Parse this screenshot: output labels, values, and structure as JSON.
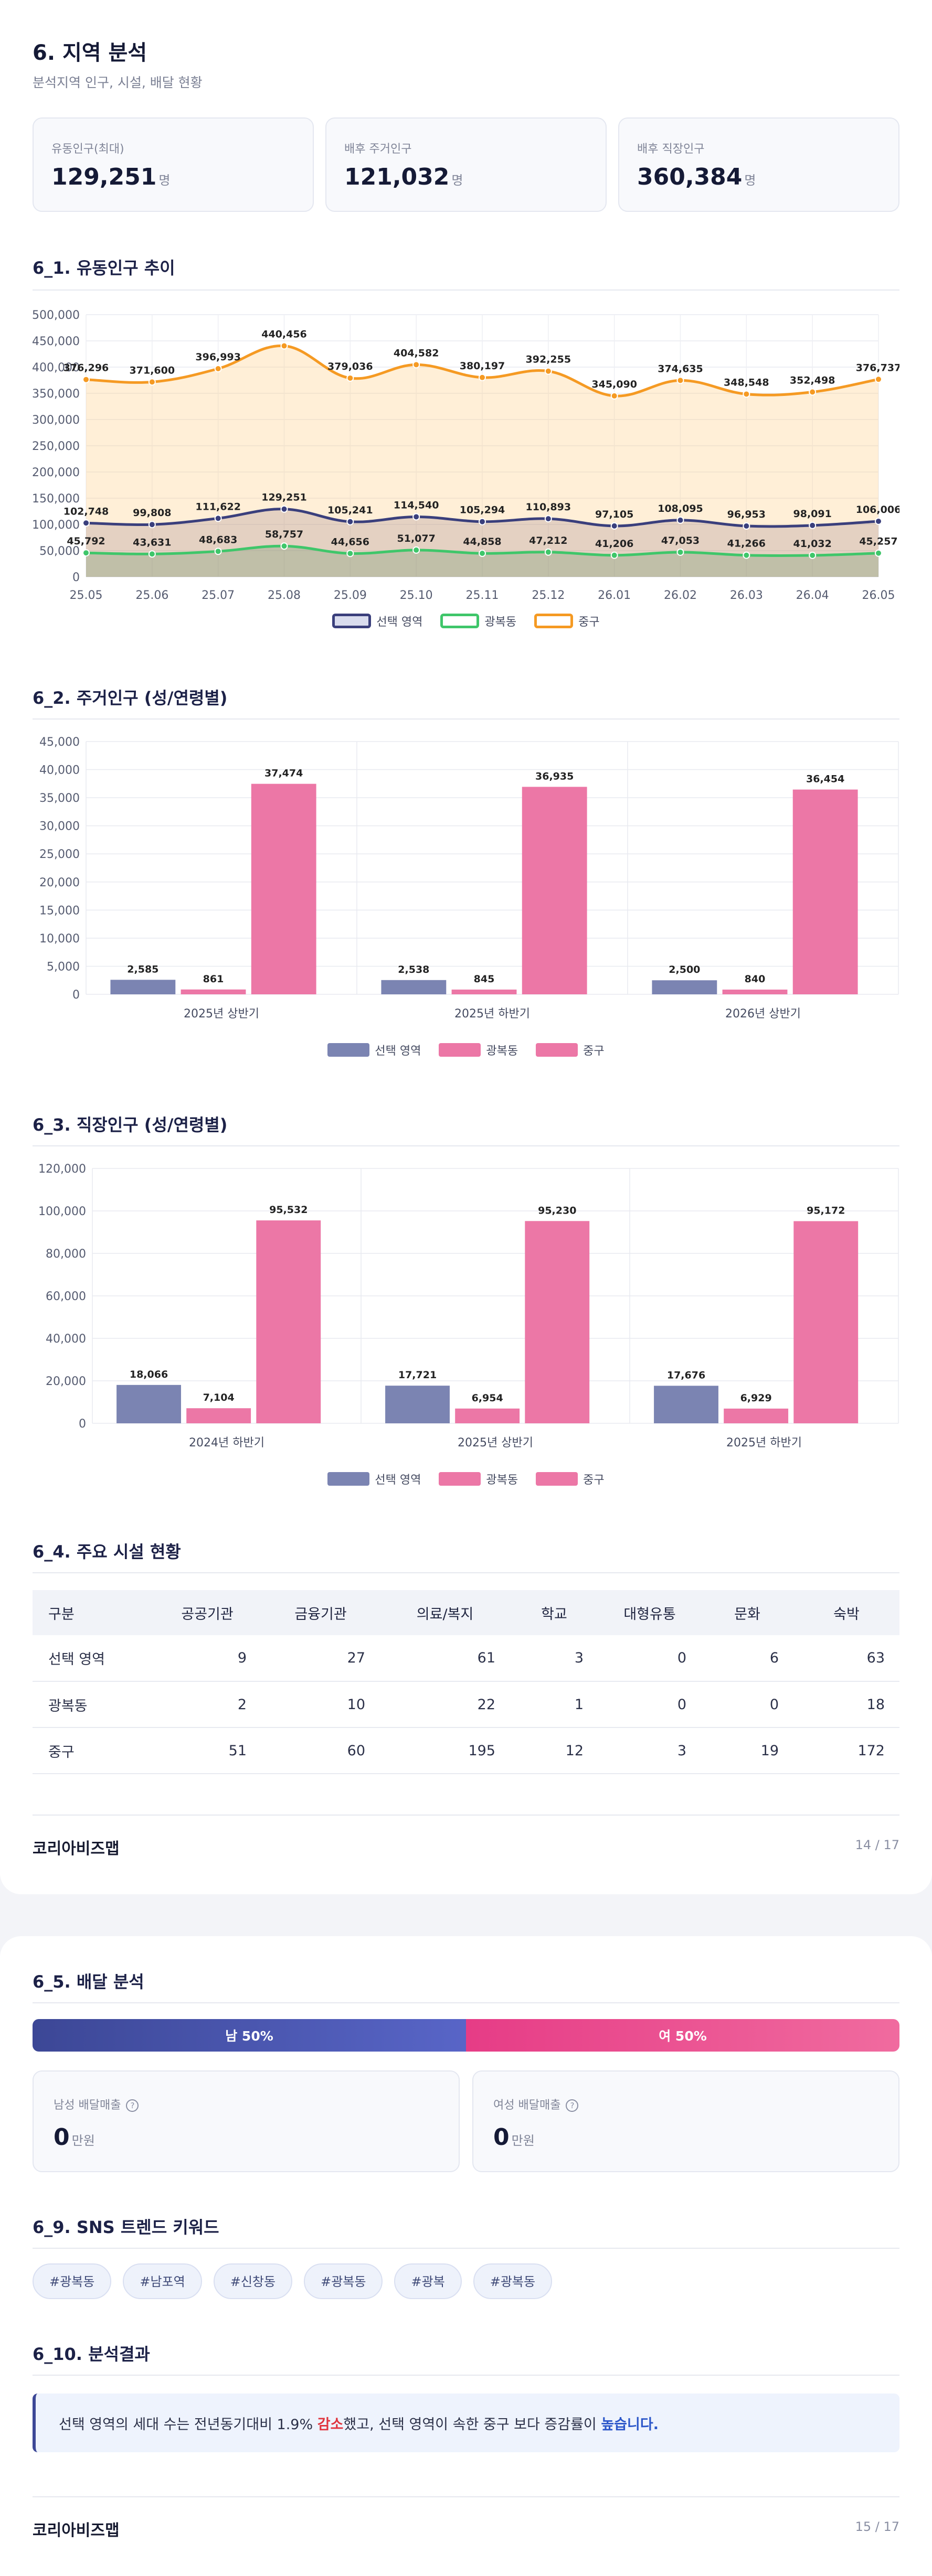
{
  "page1": {
    "title": "6. 지역 분석",
    "subtitle": "분석지역 인구, 시설, 배달 현황",
    "cards": [
      {
        "label": "유동인구(최대)",
        "value": "129,251",
        "unit": "명"
      },
      {
        "label": "배후 주거인구",
        "value": "121,032",
        "unit": "명"
      },
      {
        "label": "배후 직장인구",
        "value": "360,384",
        "unit": "명"
      }
    ],
    "sec1_title": "6_1. 유동인구 추이",
    "sec2_title": "6_2. 주거인구 (성/연령별)",
    "sec3_title": "6_3. 직장인구 (성/연령별)",
    "sec4_title": "6_4. 주요 시설 현황",
    "footer_brand": "코리아비즈맵",
    "footer_page": "14 / 17"
  },
  "legend": {
    "selected": "선택 영역",
    "dong": "광복동",
    "gu": "중구"
  },
  "colors": {
    "selected_line": "#3a3f7c",
    "dong_line": "#3fc66a",
    "gu_line": "#f59a23",
    "selected_bar": "#7b84b2",
    "dong_bar": "#ec77a6",
    "gu_bar": "#ec77a6"
  },
  "chart_data": [
    {
      "type": "line",
      "categories": [
        "25.05",
        "25.06",
        "25.07",
        "25.08",
        "25.09",
        "25.10",
        "25.11",
        "25.12",
        "26.01",
        "26.02",
        "26.03",
        "26.04",
        "26.05"
      ],
      "ylim": [
        0,
        500000
      ],
      "yticks": [
        "500,000",
        "450,000",
        "400,000",
        "350,000",
        "300,000",
        "250,000",
        "200,000",
        "150,000",
        "100,000",
        "50,000",
        "0"
      ],
      "series": [
        {
          "name": "선택 영역",
          "values": [
            102748,
            99808,
            111622,
            129251,
            105241,
            114540,
            105294,
            110893,
            97105,
            108095,
            96953,
            98091,
            106006
          ],
          "labels": [
            "102,748",
            "99,808",
            "111,622",
            "129,251",
            "105,241",
            "114,540",
            "105,294",
            "110,893",
            "97,105",
            "108,095",
            "96,953",
            "98,091",
            "106,006"
          ]
        },
        {
          "name": "광복동",
          "values": [
            45792,
            43631,
            48683,
            58757,
            44656,
            51077,
            44858,
            47212,
            41206,
            47053,
            41266,
            41032,
            45257
          ],
          "labels": [
            "45,792",
            "43,631",
            "48,683",
            "58,757",
            "44,656",
            "51,077",
            "44,858",
            "47,212",
            "41,206",
            "47,053",
            "41,266",
            "41,032",
            "45,257"
          ]
        },
        {
          "name": "중구",
          "values": [
            376296,
            371600,
            396993,
            440456,
            379036,
            404582,
            380197,
            392255,
            345090,
            374635,
            348548,
            352498,
            376737
          ],
          "labels": [
            "376,296",
            "371,600",
            "396,993",
            "440,456",
            "379,036",
            "404,582",
            "380,197",
            "392,255",
            "345,090",
            "374,635",
            "348,548",
            "352,498",
            "376,737"
          ]
        }
      ]
    },
    {
      "type": "bar",
      "categories": [
        "2025년 상반기",
        "2025년 하반기",
        "2026년 상반기"
      ],
      "ylim": [
        0,
        45000
      ],
      "yticks": [
        "45,000",
        "40,000",
        "35,000",
        "30,000",
        "25,000",
        "20,000",
        "15,000",
        "10,000",
        "5,000",
        "0"
      ],
      "series": [
        {
          "name": "선택 영역",
          "values": [
            2585,
            2538,
            2500
          ],
          "labels": [
            "2,585",
            "2,538",
            "2,500"
          ]
        },
        {
          "name": "광복동",
          "values": [
            861,
            845,
            840
          ],
          "labels": [
            "861",
            "845",
            "840"
          ]
        },
        {
          "name": "중구",
          "values": [
            37474,
            36935,
            36454
          ],
          "labels": [
            "37,474",
            "36,935",
            "36,454"
          ]
        }
      ]
    },
    {
      "type": "bar",
      "categories": [
        "2024년 하반기",
        "2025년 상반기",
        "2025년 하반기"
      ],
      "ylim": [
        0,
        120000
      ],
      "yticks": [
        "120,000",
        "100,000",
        "80,000",
        "60,000",
        "40,000",
        "20,000",
        "0"
      ],
      "series": [
        {
          "name": "선택 영역",
          "values": [
            18066,
            17721,
            17676
          ],
          "labels": [
            "18,066",
            "17,721",
            "17,676"
          ]
        },
        {
          "name": "광복동",
          "values": [
            7104,
            6954,
            6929
          ],
          "labels": [
            "7,104",
            "6,954",
            "6,929"
          ]
        },
        {
          "name": "중구",
          "values": [
            95532,
            95230,
            95172
          ],
          "labels": [
            "95,532",
            "95,230",
            "95,172"
          ]
        }
      ]
    }
  ],
  "facilities": {
    "headers": [
      "구분",
      "공공기관",
      "금융기관",
      "의료/복지",
      "학교",
      "대형유통",
      "문화",
      "숙박"
    ],
    "rows": [
      [
        "선택 영역",
        "9",
        "27",
        "61",
        "3",
        "0",
        "6",
        "63"
      ],
      [
        "광복동",
        "2",
        "10",
        "22",
        "1",
        "0",
        "0",
        "18"
      ],
      [
        "중구",
        "51",
        "60",
        "195",
        "12",
        "3",
        "19",
        "172"
      ]
    ]
  },
  "page2": {
    "sec5_title": "6_5. 배달 분석",
    "male_bar": "남 50%",
    "female_bar": "여 50%",
    "male_share": 0.5,
    "male_sales_label": "남성 배달매출",
    "male_sales_value": "0",
    "female_sales_label": "여성 배달매출",
    "female_sales_value": "0",
    "sales_unit": "만원",
    "info_glyph": "?",
    "sec9_title": "6_9. SNS 트렌드 키워드",
    "tags": [
      "#광복동",
      "#남포역",
      "#신창동",
      "#광복동",
      "#광복",
      "#광복동"
    ],
    "sec10_title": "6_10. 분석결과",
    "result_prefix": "선택 영역의 세대 수는 전년동기대비 1.9% ",
    "result_decrease": "감소",
    "result_middle": "했고, 선택 영역이 속한 중구 보다 증감률이 ",
    "result_higher": "높습니다.",
    "footer_brand": "코리아비즈맵",
    "footer_page": "15 / 17"
  }
}
